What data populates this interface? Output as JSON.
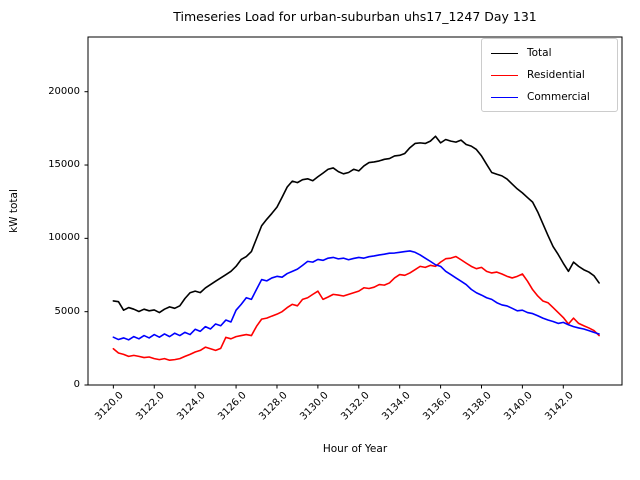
{
  "title": "Timeseries Load for urban-suburban uhs17_1247  Day 131",
  "chart_data": {
    "type": "line",
    "title": "Timeseries Load for urban-suburban uhs17_1247  Day 131",
    "xlabel": "Hour of Year",
    "ylabel": "kW total",
    "grid": false,
    "xlim": [
      3118.76,
      3144.87
    ],
    "ylim": [
      0,
      23730
    ],
    "x_ticks": {
      "values": [
        3120,
        3122,
        3124,
        3126,
        3128,
        3130,
        3132,
        3134,
        3136,
        3138,
        3140,
        3142
      ],
      "labels": [
        "3120.0",
        "3122.0",
        "3124.0",
        "3126.0",
        "3128.0",
        "3130.0",
        "3132.0",
        "3134.0",
        "3136.0",
        "3138.0",
        "3140.0",
        "3142.0"
      ]
    },
    "y_ticks": {
      "values": [
        0,
        5000,
        10000,
        15000,
        20000
      ],
      "labels": [
        "0",
        "5000",
        "10000",
        "15000",
        "20000"
      ]
    },
    "legend": {
      "position": "upper-right",
      "entries": [
        {
          "label": "Total",
          "color": "#000000"
        },
        {
          "label": "Residential",
          "color": "#ff0000"
        },
        {
          "label": "Commercial",
          "color": "#0000ff"
        }
      ]
    },
    "x_start": 3120.0,
    "x_step": 0.25,
    "series": [
      {
        "name": "Total",
        "color": "#000000",
        "values": [
          5730,
          5680,
          5100,
          5280,
          5170,
          5010,
          5170,
          5060,
          5120,
          4940,
          5170,
          5330,
          5230,
          5400,
          5900,
          6290,
          6400,
          6300,
          6620,
          6850,
          7080,
          7300,
          7520,
          7750,
          8090,
          8560,
          8760,
          9100,
          9980,
          10860,
          11300,
          11700,
          12130,
          12800,
          13500,
          13900,
          13800,
          14000,
          14060,
          13930,
          14200,
          14450,
          14710,
          14800,
          14550,
          14400,
          14490,
          14710,
          14600,
          14940,
          15170,
          15210,
          15280,
          15390,
          15440,
          15620,
          15660,
          15790,
          16180,
          16470,
          16510,
          16470,
          16630,
          16960,
          16510,
          16740,
          16630,
          16560,
          16700,
          16400,
          16290,
          16060,
          15620,
          15050,
          14490,
          14370,
          14260,
          14040,
          13700,
          13370,
          13100,
          12780,
          12470,
          11800,
          11000,
          10200,
          9440,
          8900,
          8300,
          7750,
          8380,
          8090,
          7860,
          7700,
          7450,
          6960
        ]
      },
      {
        "name": "Residential",
        "color": "#ff0000",
        "values": [
          2470,
          2180,
          2090,
          1950,
          2020,
          1950,
          1870,
          1910,
          1800,
          1730,
          1800,
          1690,
          1730,
          1800,
          1950,
          2090,
          2250,
          2360,
          2580,
          2470,
          2360,
          2500,
          3250,
          3150,
          3300,
          3370,
          3440,
          3370,
          4000,
          4490,
          4560,
          4700,
          4830,
          5000,
          5280,
          5500,
          5400,
          5840,
          5950,
          6180,
          6400,
          5840,
          6000,
          6180,
          6130,
          6070,
          6180,
          6290,
          6400,
          6630,
          6580,
          6670,
          6850,
          6810,
          6960,
          7300,
          7530,
          7480,
          7640,
          7860,
          8090,
          8020,
          8160,
          8090,
          8380,
          8610,
          8650,
          8760,
          8540,
          8310,
          8090,
          7930,
          8020,
          7750,
          7640,
          7700,
          7570,
          7410,
          7300,
          7410,
          7570,
          7080,
          6500,
          6070,
          5730,
          5610,
          5280,
          4940,
          4600,
          4160,
          4560,
          4200,
          4040,
          3890,
          3710,
          3370
        ]
      },
      {
        "name": "Commercial",
        "color": "#0000ff",
        "values": [
          3260,
          3100,
          3210,
          3080,
          3300,
          3150,
          3370,
          3210,
          3440,
          3260,
          3480,
          3300,
          3530,
          3370,
          3590,
          3440,
          3800,
          3660,
          3980,
          3820,
          4160,
          4040,
          4430,
          4300,
          5100,
          5500,
          5950,
          5840,
          6520,
          7190,
          7100,
          7300,
          7410,
          7350,
          7600,
          7750,
          7900,
          8160,
          8430,
          8380,
          8560,
          8500,
          8650,
          8700,
          8600,
          8650,
          8540,
          8630,
          8700,
          8650,
          8750,
          8800,
          8870,
          8920,
          8990,
          9000,
          9050,
          9100,
          9140,
          9050,
          8870,
          8650,
          8430,
          8200,
          8090,
          7750,
          7530,
          7300,
          7080,
          6850,
          6520,
          6290,
          6130,
          5950,
          5840,
          5610,
          5460,
          5390,
          5230,
          5060,
          5100,
          4940,
          4870,
          4720,
          4560,
          4430,
          4330,
          4200,
          4270,
          4110,
          3980,
          3890,
          3820,
          3710,
          3590,
          3480
        ]
      }
    ]
  }
}
